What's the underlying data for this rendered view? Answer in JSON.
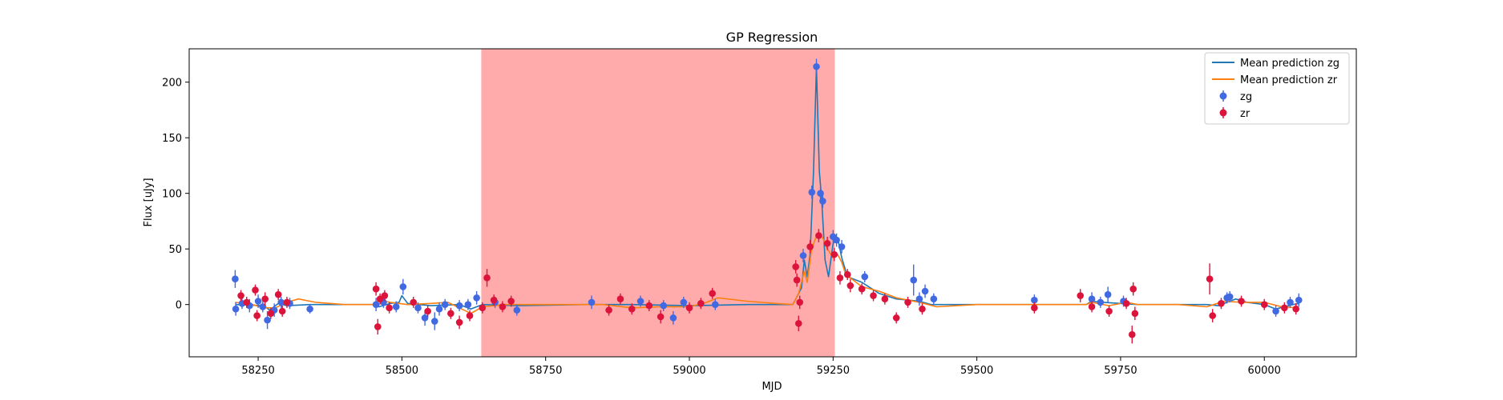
{
  "chart_data": {
    "type": "scatter",
    "title": "GP Regression",
    "xlabel": "MJD",
    "ylabel": "Flux [uJy]",
    "xlim": [
      58130,
      60160
    ],
    "ylim": [
      -47,
      230
    ],
    "xticks": [
      58250,
      58500,
      58750,
      59000,
      59250,
      59500,
      59750,
      60000
    ],
    "yticks": [
      0,
      50,
      100,
      150,
      200
    ],
    "xtick_labels": [
      "58250",
      "58500",
      "58750",
      "59000",
      "59250",
      "59500",
      "59750",
      "60000"
    ],
    "ytick_labels": [
      "0",
      "50",
      "100",
      "150",
      "200"
    ],
    "grid": false,
    "legend_position": "upper right",
    "shaded_region": {
      "x_start": 58638,
      "x_end": 59253,
      "color": "#ff0000",
      "opacity": 0.33
    },
    "colors": {
      "mean_zg": "#1f77b4",
      "mean_zr": "#ff7f0e",
      "points_zg": "#4169e1",
      "points_zr": "#dc143c"
    },
    "series": [
      {
        "name": "Mean prediction zg",
        "kind": "line",
        "points": [
          [
            58210,
            0
          ],
          [
            58260,
            -1
          ],
          [
            58270,
            -5
          ],
          [
            58285,
            1
          ],
          [
            58300,
            -1
          ],
          [
            58340,
            0
          ],
          [
            58450,
            0
          ],
          [
            58460,
            -2
          ],
          [
            58480,
            1
          ],
          [
            58495,
            2
          ],
          [
            58500,
            8
          ],
          [
            58510,
            1
          ],
          [
            58550,
            -1
          ],
          [
            58600,
            0
          ],
          [
            58620,
            -4
          ],
          [
            58640,
            0
          ],
          [
            58700,
            -1
          ],
          [
            58820,
            0
          ],
          [
            58900,
            0
          ],
          [
            59000,
            -1
          ],
          [
            59100,
            0
          ],
          [
            59180,
            0
          ],
          [
            59195,
            15
          ],
          [
            59200,
            40
          ],
          [
            59205,
            25
          ],
          [
            59210,
            45
          ],
          [
            59216,
            120
          ],
          [
            59221,
            214
          ],
          [
            59226,
            120
          ],
          [
            59230,
            95
          ],
          [
            59236,
            40
          ],
          [
            59242,
            25
          ],
          [
            59250,
            55
          ],
          [
            59258,
            60
          ],
          [
            59265,
            42
          ],
          [
            59275,
            25
          ],
          [
            59300,
            20
          ],
          [
            59330,
            10
          ],
          [
            59360,
            5
          ],
          [
            59400,
            3
          ],
          [
            59420,
            0
          ],
          [
            59500,
            0
          ],
          [
            59600,
            0
          ],
          [
            59690,
            0
          ],
          [
            59700,
            3
          ],
          [
            59720,
            2
          ],
          [
            59750,
            1
          ],
          [
            59780,
            0
          ],
          [
            59850,
            0
          ],
          [
            59900,
            0
          ],
          [
            59920,
            -1
          ],
          [
            59950,
            5
          ],
          [
            59970,
            2
          ],
          [
            60000,
            0
          ],
          [
            60020,
            -4
          ],
          [
            60050,
            0
          ],
          [
            60060,
            1
          ]
        ]
      },
      {
        "name": "Mean prediction zr",
        "kind": "line",
        "points": [
          [
            58210,
            2
          ],
          [
            58240,
            0
          ],
          [
            58260,
            -3
          ],
          [
            58280,
            -3
          ],
          [
            58300,
            2
          ],
          [
            58320,
            5
          ],
          [
            58350,
            2
          ],
          [
            58400,
            0
          ],
          [
            58450,
            0
          ],
          [
            58460,
            4
          ],
          [
            58480,
            2
          ],
          [
            58510,
            0
          ],
          [
            58550,
            1
          ],
          [
            58580,
            2
          ],
          [
            58620,
            -8
          ],
          [
            58640,
            -2
          ],
          [
            58680,
            0
          ],
          [
            58750,
            0
          ],
          [
            58850,
            0
          ],
          [
            58900,
            -3
          ],
          [
            58950,
            -2
          ],
          [
            59000,
            -2
          ],
          [
            59030,
            2
          ],
          [
            59050,
            6
          ],
          [
            59100,
            3
          ],
          [
            59150,
            1
          ],
          [
            59180,
            0
          ],
          [
            59190,
            10
          ],
          [
            59200,
            30
          ],
          [
            59205,
            20
          ],
          [
            59212,
            48
          ],
          [
            59218,
            58
          ],
          [
            59225,
            65
          ],
          [
            59232,
            60
          ],
          [
            59240,
            50
          ],
          [
            59250,
            42
          ],
          [
            59258,
            45
          ],
          [
            59265,
            38
          ],
          [
            59272,
            27
          ],
          [
            59285,
            22
          ],
          [
            59300,
            16
          ],
          [
            59330,
            12
          ],
          [
            59360,
            6
          ],
          [
            59400,
            2
          ],
          [
            59430,
            -2
          ],
          [
            59500,
            0
          ],
          [
            59600,
            0
          ],
          [
            59690,
            0
          ],
          [
            59700,
            2
          ],
          [
            59730,
            -1
          ],
          [
            59760,
            2
          ],
          [
            59780,
            0
          ],
          [
            59850,
            0
          ],
          [
            59900,
            -2
          ],
          [
            59930,
            3
          ],
          [
            59960,
            2
          ],
          [
            60000,
            2
          ],
          [
            60030,
            -2
          ],
          [
            60060,
            -3
          ]
        ]
      },
      {
        "name": "zg",
        "kind": "errorbar",
        "points": [
          [
            58210,
            23,
            8
          ],
          [
            58211,
            -4,
            6
          ],
          [
            58222,
            1,
            5
          ],
          [
            58235,
            -1,
            6
          ],
          [
            58250,
            3,
            6
          ],
          [
            58258,
            -2,
            5
          ],
          [
            58266,
            -14,
            8
          ],
          [
            58278,
            -5,
            6
          ],
          [
            58290,
            2,
            5
          ],
          [
            58305,
            1,
            5
          ],
          [
            58340,
            -4,
            4
          ],
          [
            58455,
            0,
            6
          ],
          [
            58468,
            2,
            5
          ],
          [
            58490,
            -2,
            5
          ],
          [
            58502,
            16,
            7
          ],
          [
            58528,
            -3,
            5
          ],
          [
            58540,
            -12,
            7
          ],
          [
            58557,
            -15,
            8
          ],
          [
            58565,
            -4,
            6
          ],
          [
            58575,
            0,
            5
          ],
          [
            58600,
            -1,
            5
          ],
          [
            58615,
            0,
            5
          ],
          [
            58630,
            6,
            6
          ],
          [
            58662,
            2,
            5
          ],
          [
            58700,
            -5,
            5
          ],
          [
            58830,
            2,
            6
          ],
          [
            58915,
            3,
            5
          ],
          [
            58955,
            -1,
            5
          ],
          [
            58972,
            -12,
            6
          ],
          [
            58990,
            2,
            5
          ],
          [
            59045,
            0,
            5
          ],
          [
            59198,
            44,
            6
          ],
          [
            59213,
            101,
            6
          ],
          [
            59221,
            214,
            7
          ],
          [
            59228,
            100,
            6
          ],
          [
            59232,
            93,
            6
          ],
          [
            59250,
            61,
            6
          ],
          [
            59256,
            58,
            6
          ],
          [
            59265,
            52,
            6
          ],
          [
            59305,
            25,
            5
          ],
          [
            59390,
            22,
            14
          ],
          [
            59400,
            5,
            6
          ],
          [
            59410,
            12,
            6
          ],
          [
            59425,
            5,
            5
          ],
          [
            59600,
            4,
            5
          ],
          [
            59700,
            5,
            6
          ],
          [
            59715,
            2,
            5
          ],
          [
            59728,
            9,
            7
          ],
          [
            59755,
            3,
            5
          ],
          [
            59935,
            6,
            5
          ],
          [
            59940,
            7,
            5
          ],
          [
            60020,
            -6,
            5
          ],
          [
            60045,
            2,
            5
          ],
          [
            60060,
            4,
            6
          ]
        ]
      },
      {
        "name": "zr",
        "kind": "errorbar",
        "points": [
          [
            58220,
            8,
            5
          ],
          [
            58230,
            2,
            5
          ],
          [
            58245,
            13,
            5
          ],
          [
            58248,
            -10,
            5
          ],
          [
            58262,
            5,
            6
          ],
          [
            58272,
            -8,
            5
          ],
          [
            58285,
            9,
            5
          ],
          [
            58292,
            -6,
            5
          ],
          [
            58300,
            2,
            5
          ],
          [
            58455,
            14,
            6
          ],
          [
            58458,
            -20,
            7
          ],
          [
            58462,
            5,
            5
          ],
          [
            58470,
            8,
            5
          ],
          [
            58478,
            -3,
            5
          ],
          [
            58520,
            2,
            5
          ],
          [
            58545,
            -6,
            5
          ],
          [
            58585,
            -8,
            5
          ],
          [
            58600,
            -16,
            6
          ],
          [
            58618,
            -10,
            5
          ],
          [
            58640,
            -3,
            5
          ],
          [
            58648,
            24,
            8
          ],
          [
            58660,
            4,
            5
          ],
          [
            58675,
            -2,
            5
          ],
          [
            58690,
            3,
            5
          ],
          [
            58860,
            -5,
            5
          ],
          [
            58880,
            5,
            5
          ],
          [
            58900,
            -4,
            5
          ],
          [
            58930,
            -1,
            5
          ],
          [
            58950,
            -11,
            6
          ],
          [
            59000,
            -3,
            5
          ],
          [
            59020,
            1,
            5
          ],
          [
            59040,
            10,
            5
          ],
          [
            59185,
            34,
            6
          ],
          [
            59187,
            22,
            6
          ],
          [
            59190,
            -17,
            7
          ],
          [
            59192,
            2,
            6
          ],
          [
            59210,
            52,
            6
          ],
          [
            59225,
            62,
            6
          ],
          [
            59240,
            55,
            6
          ],
          [
            59252,
            45,
            6
          ],
          [
            59262,
            24,
            6
          ],
          [
            59275,
            27,
            5
          ],
          [
            59280,
            17,
            6
          ],
          [
            59300,
            14,
            5
          ],
          [
            59320,
            8,
            5
          ],
          [
            59340,
            5,
            5
          ],
          [
            59360,
            -12,
            5
          ],
          [
            59380,
            2,
            5
          ],
          [
            59405,
            -4,
            5
          ],
          [
            59600,
            -3,
            5
          ],
          [
            59680,
            8,
            6
          ],
          [
            59700,
            -2,
            5
          ],
          [
            59730,
            -6,
            5
          ],
          [
            59760,
            1,
            5
          ],
          [
            59770,
            -27,
            8
          ],
          [
            59772,
            14,
            6
          ],
          [
            59775,
            -8,
            6
          ],
          [
            59905,
            23,
            14
          ],
          [
            59910,
            -10,
            6
          ],
          [
            59925,
            1,
            5
          ],
          [
            59960,
            3,
            5
          ],
          [
            60000,
            0,
            5
          ],
          [
            60035,
            -3,
            5
          ],
          [
            60055,
            -4,
            5
          ]
        ]
      }
    ]
  }
}
